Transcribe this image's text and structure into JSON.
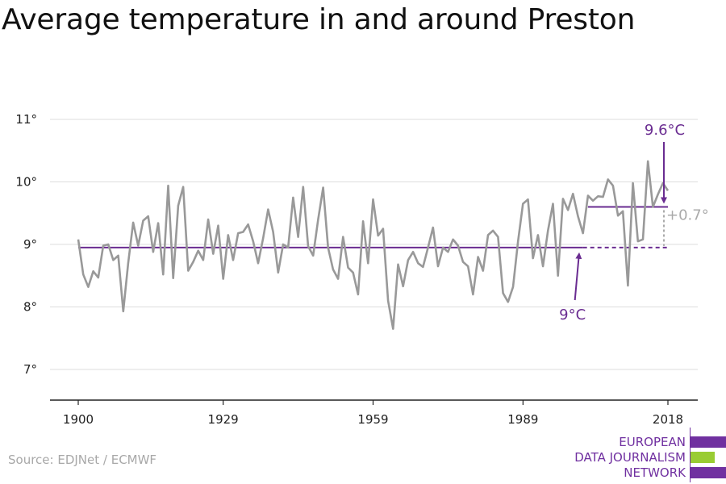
{
  "title": "Average temperature in and around Preston",
  "source": "Source: EDJNet / ECMWF",
  "logo": {
    "lines": [
      "EUROPEAN",
      "DATA JOURNALISM",
      "NETWORK"
    ],
    "colors": {
      "purple": "#7030a0",
      "green": "#99cc33"
    }
  },
  "colors": {
    "series": "#999999",
    "accent": "#6a2c91",
    "annotation_grey": "#aaaaaa",
    "grid": "#dddddd",
    "axis": "#222222"
  },
  "chart_data": {
    "type": "line",
    "title": "Average temperature in and around Preston",
    "xlabel": "",
    "ylabel": "",
    "xlim": [
      1900,
      2018
    ],
    "ylim": [
      7,
      11
    ],
    "x_ticks": [
      1900,
      1929,
      1959,
      1989,
      2018
    ],
    "y_ticks": [
      7,
      8,
      9,
      10,
      11
    ],
    "y_tick_labels": [
      "7°",
      "8°",
      "9°",
      "10°",
      "11°"
    ],
    "grid": "horizontal",
    "x": [
      1900,
      1901,
      1902,
      1903,
      1904,
      1905,
      1906,
      1907,
      1908,
      1909,
      1910,
      1911,
      1912,
      1913,
      1914,
      1915,
      1916,
      1917,
      1918,
      1919,
      1920,
      1921,
      1922,
      1923,
      1924,
      1925,
      1926,
      1927,
      1928,
      1929,
      1930,
      1931,
      1932,
      1933,
      1934,
      1935,
      1936,
      1937,
      1938,
      1939,
      1940,
      1941,
      1942,
      1943,
      1944,
      1945,
      1946,
      1947,
      1948,
      1949,
      1950,
      1951,
      1952,
      1953,
      1954,
      1955,
      1956,
      1957,
      1958,
      1959,
      1960,
      1961,
      1962,
      1963,
      1964,
      1965,
      1966,
      1967,
      1968,
      1969,
      1970,
      1971,
      1972,
      1973,
      1974,
      1975,
      1976,
      1977,
      1978,
      1979,
      1980,
      1981,
      1982,
      1983,
      1984,
      1985,
      1986,
      1987,
      1988,
      1989,
      1990,
      1991,
      1992,
      1993,
      1994,
      1995,
      1996,
      1997,
      1998,
      1999,
      2000,
      2001,
      2002,
      2003,
      2004,
      2005,
      2006,
      2007,
      2008,
      2009,
      2010,
      2011,
      2012,
      2013,
      2014,
      2015,
      2016,
      2017,
      2018
    ],
    "values": [
      9.08,
      8.52,
      8.32,
      8.57,
      8.47,
      8.98,
      9.0,
      8.75,
      8.82,
      7.93,
      8.7,
      9.35,
      8.98,
      9.38,
      9.45,
      8.88,
      9.34,
      8.52,
      9.94,
      8.46,
      9.62,
      9.92,
      8.58,
      8.72,
      8.9,
      8.75,
      9.4,
      8.85,
      9.3,
      8.45,
      9.15,
      8.75,
      9.18,
      9.2,
      9.32,
      9.05,
      8.7,
      9.1,
      9.56,
      9.2,
      8.55,
      9.0,
      8.95,
      9.75,
      9.12,
      9.92,
      8.97,
      8.82,
      9.4,
      9.91,
      8.95,
      8.6,
      8.45,
      9.12,
      8.63,
      8.55,
      8.2,
      9.37,
      8.7,
      9.72,
      9.14,
      9.25,
      8.1,
      7.65,
      8.68,
      8.33,
      8.75,
      8.88,
      8.7,
      8.64,
      8.95,
      9.27,
      8.65,
      8.95,
      8.88,
      9.08,
      8.98,
      8.72,
      8.65,
      8.2,
      8.8,
      8.58,
      9.15,
      9.22,
      9.12,
      8.22,
      8.08,
      8.32,
      9.05,
      9.65,
      9.72,
      8.78,
      9.15,
      8.65,
      9.22,
      9.65,
      8.5,
      9.73,
      9.55,
      9.81,
      9.45,
      9.18,
      9.78,
      9.7,
      9.77,
      9.76,
      10.04,
      9.94,
      9.46,
      9.53,
      8.34,
      9.98,
      9.05,
      9.08,
      10.33,
      9.6,
      9.8,
      9.98,
      9.86
    ],
    "series": [
      {
        "values_ref": "values"
      }
    ],
    "annotations": {
      "baseline": {
        "value": 8.95,
        "x_start": 1900,
        "x_solid_end": 2001,
        "x_end": 2018,
        "label": "9°C"
      },
      "recent": {
        "value": 9.6,
        "x_start": 2002,
        "x_end": 2018,
        "label": "9.6°C"
      },
      "difference": {
        "label": "+0.7°"
      }
    }
  }
}
